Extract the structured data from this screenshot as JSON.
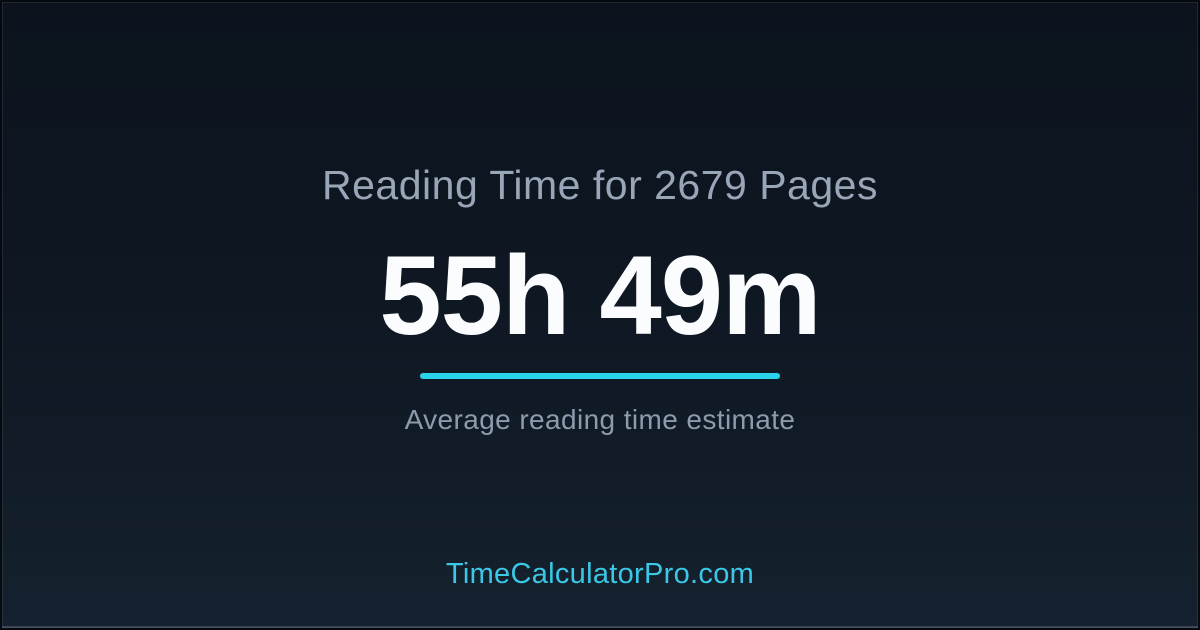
{
  "card": {
    "title": "Reading Time for 2679 Pages",
    "main_value": "55h 49m",
    "subtitle": "Average reading time estimate",
    "footer_url": "TimeCalculatorPro.com"
  },
  "colors": {
    "accent_cyan": "#29d3ec",
    "footer_cyan": "#3bc7e6",
    "title_text": "#98a6b8",
    "subtitle_text": "#8e9bac",
    "main_text": "#fafcfe",
    "background_top": "#0c131d",
    "background_bottom": "#15212e"
  }
}
